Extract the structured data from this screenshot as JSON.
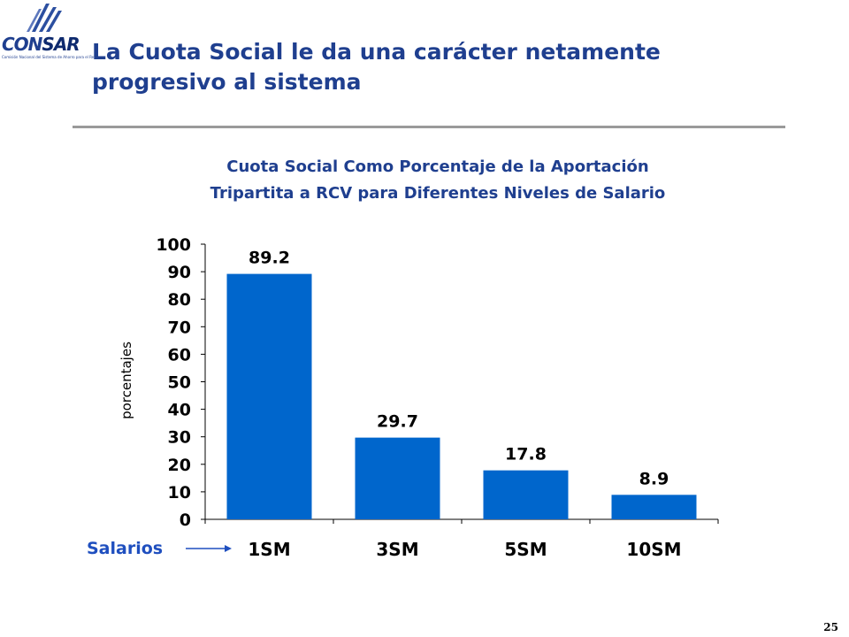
{
  "logo": {
    "text_main": "CON",
    "text_accent": "SAR",
    "subtitle": "Comisión Nacional del Sistema de Ahorro para el Retiro"
  },
  "slide": {
    "title_line1": "La Cuota Social le da una carácter netamente",
    "title_line2": "progresivo al sistema",
    "page_number": "25"
  },
  "chart_data": {
    "type": "bar",
    "title_line1": "Cuota Social Como Porcentaje de la Aportación",
    "title_line2": "Tripartita a RCV para Diferentes Niveles de Salario",
    "categories": [
      "1SM",
      "3SM",
      "5SM",
      "10SM"
    ],
    "values": [
      89.2,
      29.7,
      17.8,
      8.9
    ],
    "value_labels": [
      "89.2",
      "29.7",
      "17.8",
      "8.9"
    ],
    "ylabel": "porcentajes",
    "xlabel": "Salarios",
    "ylim": [
      0,
      100
    ],
    "yticks": [
      0,
      10,
      20,
      30,
      40,
      50,
      60,
      70,
      80,
      90,
      100
    ],
    "grid": false,
    "legend": "none"
  },
  "colors": {
    "bar": "#0066cc",
    "title": "#1f3f8f",
    "axis": "#000000",
    "xlabel": "#1f4fbf"
  }
}
